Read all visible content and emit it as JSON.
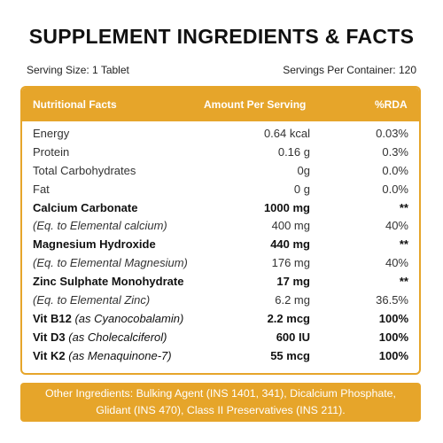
{
  "title": "SUPPLEMENT INGREDIENTS & FACTS",
  "serving_size": "Serving Size: 1 Tablet",
  "servings_per_container": "Servings Per Container: 120",
  "table": {
    "headers": {
      "name": "Nutritional Facts",
      "amount": "Amount Per Serving",
      "rda": "%RDA"
    },
    "rows": [
      {
        "name": "Energy",
        "sub": "",
        "amount": "0.64 kcal",
        "rda": "0.03%"
      },
      {
        "name": "Protein",
        "sub": "",
        "amount": "0.16 g",
        "rda": "0.3%"
      },
      {
        "name": "Total Carbohydrates",
        "sub": "",
        "amount": "0g",
        "rda": "0.0%"
      },
      {
        "name": "Fat",
        "sub": "",
        "amount": "0 g",
        "rda": "0.0%"
      },
      {
        "name": "Calcium Carbonate",
        "sub": "",
        "amount": "1000 mg",
        "rda": "**"
      },
      {
        "name": "(Eq. to Elemental calcium)",
        "sub": "",
        "amount": "400 mg",
        "rda": "40%"
      },
      {
        "name": "Magnesium Hydroxide",
        "sub": "",
        "amount": "440 mg",
        "rda": "**"
      },
      {
        "name": "(Eq. to Elemental Magnesium)",
        "sub": "",
        "amount": "176 mg",
        "rda": "40%"
      },
      {
        "name": "Zinc Sulphate Monohydrate",
        "sub": "",
        "amount": "17 mg",
        "rda": "**"
      },
      {
        "name": "(Eq. to Elemental Zinc)",
        "sub": "",
        "amount": "6.2 mg",
        "rda": "36.5%"
      },
      {
        "name": "Vit B12",
        "sub": "(as Cyanocobalamin)",
        "amount": "2.2 mcg",
        "rda": "100%"
      },
      {
        "name": "Vit D3",
        "sub": "(as Cholecalciferol)",
        "amount": "600 IU",
        "rda": "100%"
      },
      {
        "name": "Vit K2",
        "sub": "(as Menaquinone-7)",
        "amount": "55 mcg",
        "rda": "100%"
      }
    ]
  },
  "footer": "Other Ingredients: Bulking Agent (INS 1401, 341), Dicalcium Phosphate, Glidant (INS 470), Class II Preservatives (INS 211).",
  "colors": {
    "accent": "#e6a52a"
  }
}
